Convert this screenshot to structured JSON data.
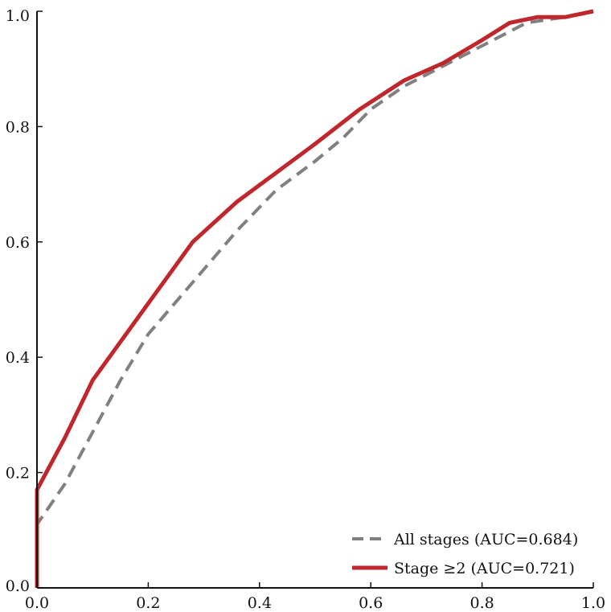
{
  "chart_data": {
    "type": "line",
    "title": "",
    "xlabel": "",
    "ylabel": "",
    "xlim": [
      0.0,
      1.0
    ],
    "ylim": [
      0.0,
      1.0
    ],
    "x_ticks": [
      "0.0",
      "0.2",
      "0.4",
      "0.6",
      "0.8",
      "1.0"
    ],
    "y_ticks": [
      "0.0",
      "0.2",
      "0.4",
      "0.6",
      "0.8",
      "1.0"
    ],
    "grid": false,
    "legend_position": "bottom-right",
    "series": [
      {
        "name": "All stages (AUC=0.684)",
        "color": "#808080",
        "style": "dashed",
        "points": [
          [
            0.0,
            0.0
          ],
          [
            0.0,
            0.11
          ],
          [
            0.05,
            0.18
          ],
          [
            0.1,
            0.27
          ],
          [
            0.15,
            0.36
          ],
          [
            0.2,
            0.44
          ],
          [
            0.28,
            0.53
          ],
          [
            0.36,
            0.62
          ],
          [
            0.43,
            0.69
          ],
          [
            0.5,
            0.74
          ],
          [
            0.55,
            0.78
          ],
          [
            0.6,
            0.83
          ],
          [
            0.66,
            0.87
          ],
          [
            0.72,
            0.9
          ],
          [
            0.8,
            0.94
          ],
          [
            0.88,
            0.98
          ],
          [
            0.95,
            0.99
          ],
          [
            1.0,
            1.0
          ]
        ]
      },
      {
        "name": "Stage ≥2 (AUC=0.721)",
        "color": "#C0272D",
        "style": "solid",
        "points": [
          [
            0.0,
            0.0
          ],
          [
            0.0,
            0.17
          ],
          [
            0.05,
            0.26
          ],
          [
            0.1,
            0.36
          ],
          [
            0.19,
            0.48
          ],
          [
            0.28,
            0.6
          ],
          [
            0.36,
            0.67
          ],
          [
            0.43,
            0.72
          ],
          [
            0.5,
            0.77
          ],
          [
            0.58,
            0.83
          ],
          [
            0.66,
            0.88
          ],
          [
            0.73,
            0.91
          ],
          [
            0.8,
            0.95
          ],
          [
            0.85,
            0.98
          ],
          [
            0.9,
            0.99
          ],
          [
            0.95,
            0.99
          ],
          [
            1.0,
            1.0
          ]
        ]
      }
    ]
  }
}
